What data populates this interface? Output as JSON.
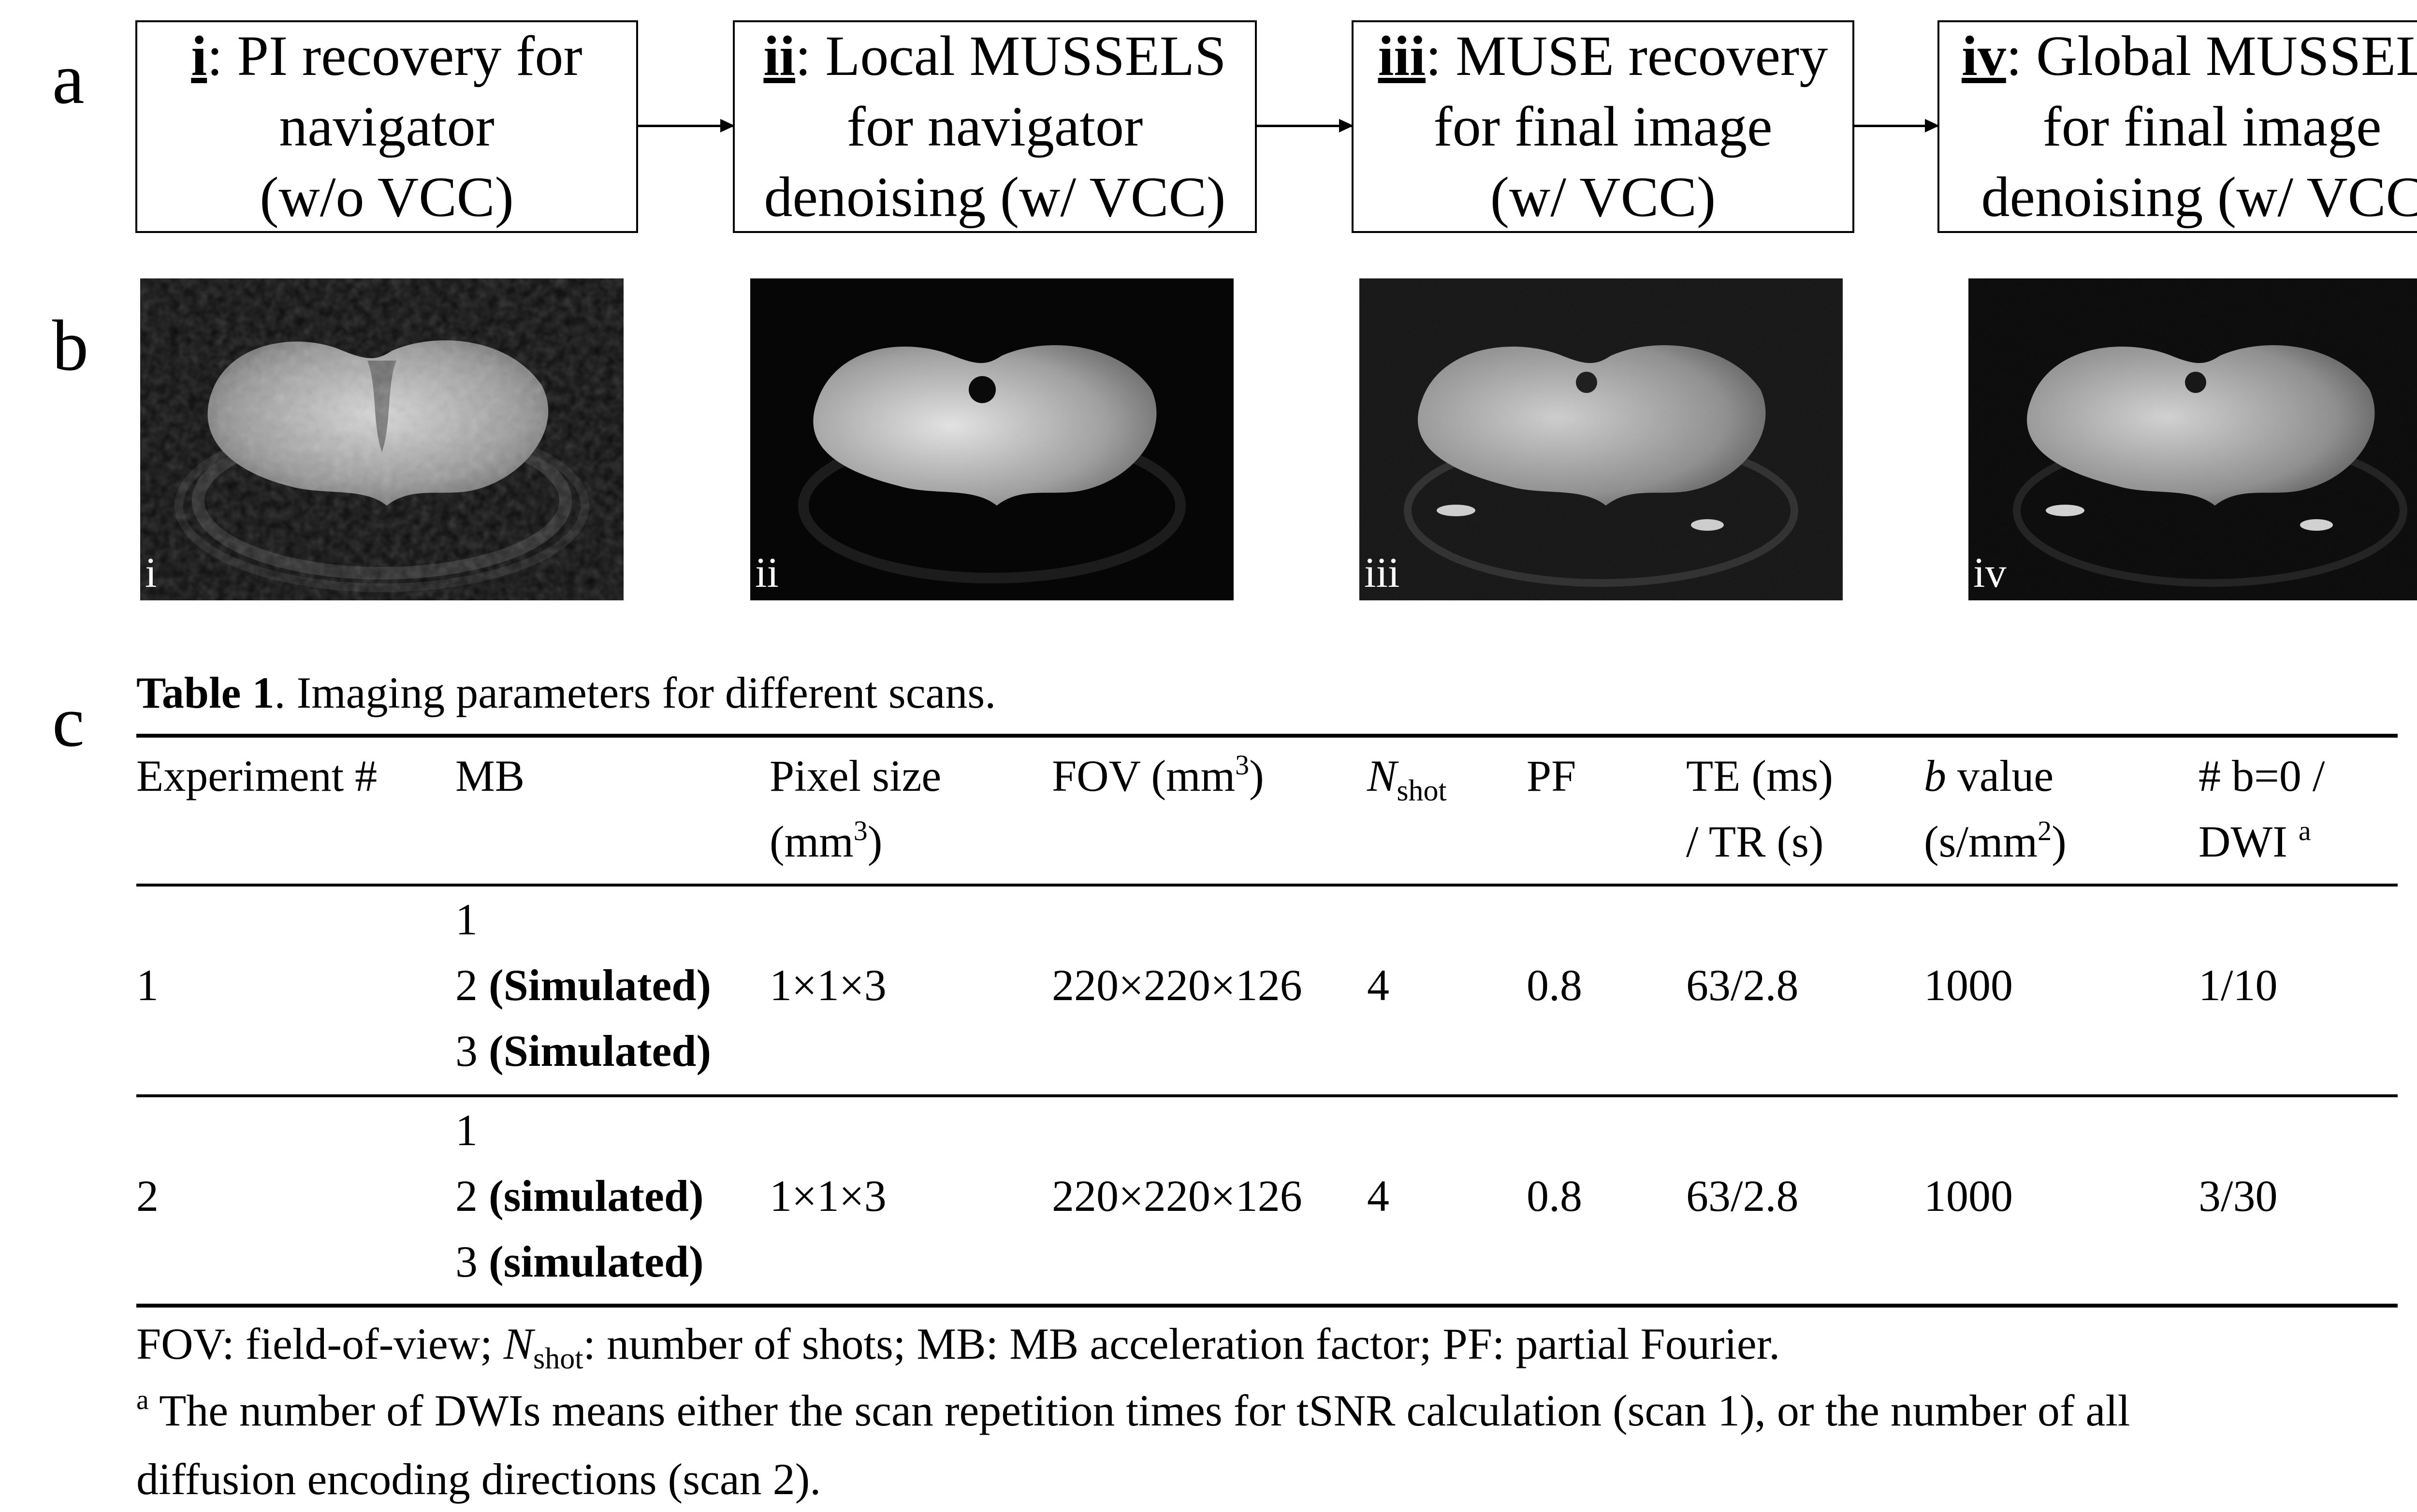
{
  "panels": {
    "a": "a",
    "b": "b",
    "c": "c"
  },
  "flow": [
    {
      "label": "i",
      "rest": ": PI recovery for",
      "line2": "navigator",
      "line3": "(w/o VCC)"
    },
    {
      "label": "ii",
      "rest": ": Local MUSSELS",
      "line2": "for navigator",
      "line3": "denoising (w/ VCC)"
    },
    {
      "label": "iii",
      "rest": ": MUSE recovery",
      "line2": "for final image",
      "line3": "(w/ VCC)"
    },
    {
      "label": "iv",
      "rest": ": Global MUSSELS",
      "line2": "for final image",
      "line3": "denoising (w/ VCC)"
    }
  ],
  "images": [
    {
      "label": "i"
    },
    {
      "label": "ii"
    },
    {
      "label": "iii"
    },
    {
      "label": "iv"
    }
  ],
  "table": {
    "caption_bold": "Table 1",
    "caption_rest": ". Imaging parameters for different scans.",
    "headers": {
      "experiment": "Experiment #",
      "mb": "MB",
      "pixel_a": "Pixel size",
      "pixel_b": "(mm",
      "pixel_sup": "3",
      "pixel_c": ")",
      "fov_a": "FOV (mm",
      "fov_sup": "3",
      "fov_c": ")",
      "nshot_n": "N",
      "nshot_sub": "shot",
      "pf": "PF",
      "te_a": "TE (ms)",
      "te_b": "/ TR (s)",
      "b_italic": "b",
      "b_rest": " value",
      "b_b": "(s/mm",
      "b_sup": "2",
      "b_c": ")",
      "dwi_a": "# b=0 /",
      "dwi_b": "DWI ",
      "dwi_sup": "a"
    },
    "rows": [
      {
        "experiment": "1",
        "mb1": "1",
        "mb2_num": "2 ",
        "mb2_bold": "(Simulated)",
        "mb3_num": "3 ",
        "mb3_bold": "(Simulated)",
        "pixel": "1×1×3",
        "fov": "220×220×126",
        "nshot": "4",
        "pf": "0.8",
        "te_tr": "63/2.8",
        "b": "1000",
        "dwi": "1/10"
      },
      {
        "experiment": "2",
        "mb1": "1",
        "mb2_num": "2 ",
        "mb2_bold": "(simulated)",
        "mb3_num": "3 ",
        "mb3_bold": "(simulated)",
        "pixel": "1×1×3",
        "fov": "220×220×126",
        "nshot": "4",
        "pf": "0.8",
        "te_tr": "63/2.8",
        "b": "1000",
        "dwi": "3/30"
      }
    ]
  },
  "footnotes": {
    "line1_a": "FOV: field-of-view; ",
    "line1_n": "N",
    "line1_sub": "shot",
    "line1_b": ": number of shots; MB: MB acceleration factor; PF: partial Fourier.",
    "line2_sup": "a",
    "line2": " The number of DWIs means either the scan repetition times for tSNR calculation (scan 1), or the number of all",
    "line3": "diffusion encoding directions (scan 2)."
  }
}
